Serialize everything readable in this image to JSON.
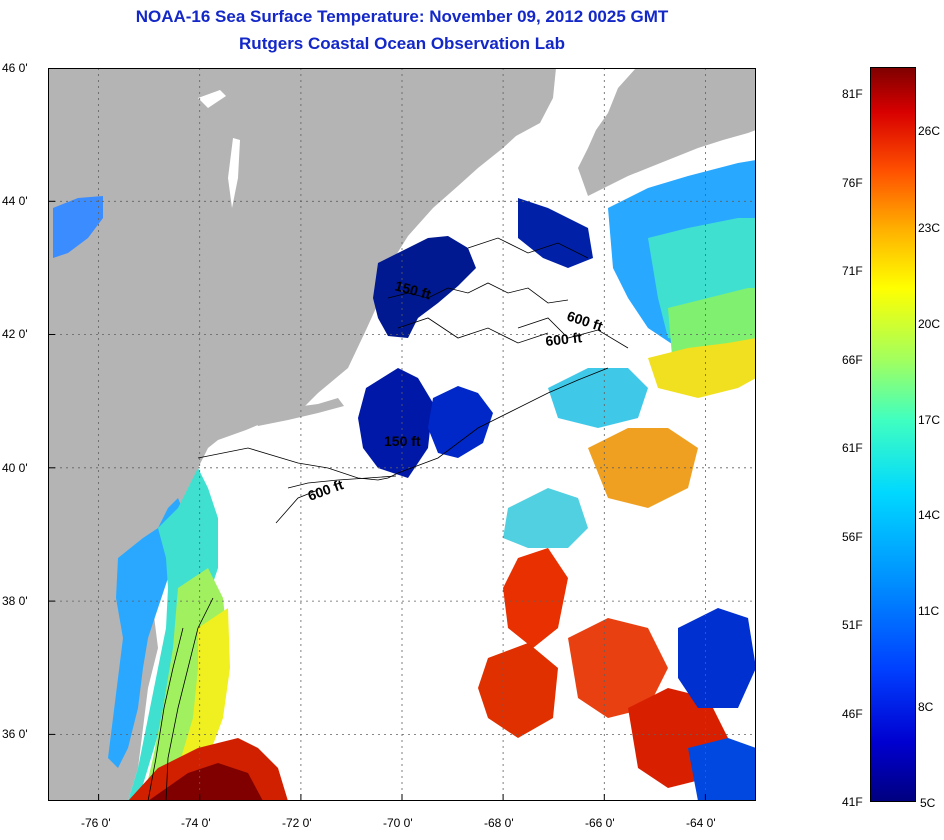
{
  "title": {
    "line1": "NOAA-16 Sea Surface Temperature:  November 09, 2012 0025 GMT",
    "line2": "Rutgers Coastal Ocean Observation Lab"
  },
  "map": {
    "lon_range": [
      -77,
      -63
    ],
    "lat_range": [
      35,
      46
    ],
    "x_ticks": [
      "-76 0'",
      "-74 0'",
      "-72 0'",
      "-70 0'",
      "-68 0'",
      "-66 0'",
      "-64 0'"
    ],
    "y_ticks": [
      "46 0'",
      "44 0'",
      "42 0'",
      "40 0'",
      "38 0'",
      "36 0'"
    ],
    "contour_labels": [
      "600 ft",
      "600 ft",
      "150 ft",
      "150 ft",
      "600 ft"
    ],
    "colors": {
      "land": "#b4b4b4",
      "no_data": "#ffffff",
      "grid": "#606060"
    }
  },
  "colorbar": {
    "fahrenheit": [
      "81F",
      "76F",
      "71F",
      "66F",
      "61F",
      "56F",
      "51F",
      "46F",
      "41F"
    ],
    "celsius": [
      "26C",
      "23C",
      "20C",
      "17C",
      "14C",
      "11C",
      "8C",
      "5C"
    ],
    "range_F": [
      41,
      83
    ]
  }
}
